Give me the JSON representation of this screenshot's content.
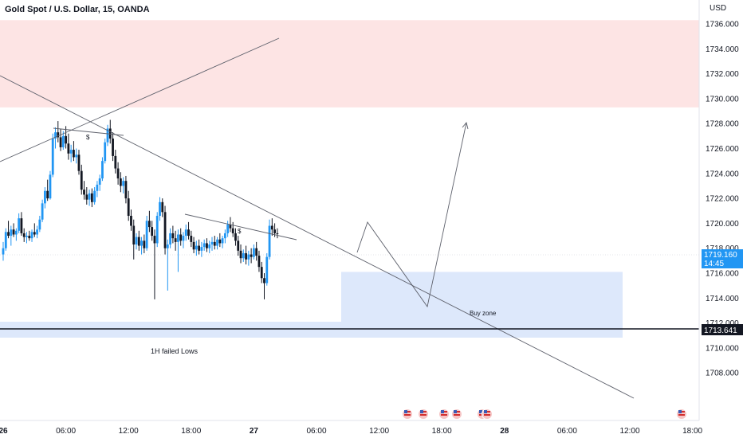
{
  "header": {
    "title": "Gold Spot / U.S. Dollar, 15, OANDA",
    "currency": "USD"
  },
  "chart_data": {
    "type": "candlestick",
    "symbol": "Gold Spot / U.S. Dollar",
    "interval": "15",
    "source": "OANDA",
    "y_axis": {
      "ticks": [
        "1736.000",
        "1734.000",
        "1732.000",
        "1730.000",
        "1728.000",
        "1726.000",
        "1724.000",
        "1722.000",
        "1720.000",
        "1718.000",
        "1716.000",
        "1714.000",
        "1712.000",
        "1710.000",
        "1708.000"
      ],
      "range": [
        1707.2,
        1737.4
      ]
    },
    "x_axis": {
      "ticks": [
        {
          "label": "26",
          "bold": true
        },
        {
          "label": "06:00",
          "bold": false
        },
        {
          "label": "12:00",
          "bold": false
        },
        {
          "label": "18:00",
          "bold": false
        },
        {
          "label": "27",
          "bold": true
        },
        {
          "label": "06:00",
          "bold": false
        },
        {
          "label": "12:00",
          "bold": false
        },
        {
          "label": "18:00",
          "bold": false
        },
        {
          "label": "28",
          "bold": true
        },
        {
          "label": "06:00",
          "bold": false
        },
        {
          "label": "12:00",
          "bold": false
        },
        {
          "label": "18:00",
          "bold": false
        }
      ],
      "tick_hours": [
        0,
        6,
        12,
        18,
        24,
        30,
        36,
        42,
        48,
        54,
        60,
        66
      ]
    },
    "price_labels": {
      "last_price": "1719.160",
      "countdown": "14:45",
      "support_line": "1713.641"
    },
    "annotations": {
      "failed_lows": "1H failed Lows",
      "buy_zone": "Buy zone",
      "liquidity_marker_1": "$",
      "liquidity_marker_2": "$"
    },
    "zones": [
      {
        "name": "supply",
        "from": 1729.3,
        "to": 1736.3,
        "color": "#fde4e4"
      },
      {
        "name": "buy",
        "from": 1713.2,
        "to": 1716.1,
        "color": "#dde8fb"
      }
    ],
    "colors": {
      "up": "#2196f3",
      "down": "#131722",
      "supply": "#fde4e4",
      "buy": "#dde8fb"
    },
    "candles": [
      [
        0.0,
        1717.5,
        1718.5,
        1717.0,
        1718.0
      ],
      [
        0.25,
        1718.0,
        1719.6,
        1717.8,
        1719.3
      ],
      [
        0.5,
        1719.3,
        1720.2,
        1718.8,
        1719.0
      ],
      [
        0.75,
        1719.0,
        1719.8,
        1718.2,
        1719.5
      ],
      [
        1.0,
        1719.5,
        1720.0,
        1718.9,
        1719.1
      ],
      [
        1.25,
        1719.1,
        1719.6,
        1718.6,
        1719.4
      ],
      [
        1.5,
        1719.4,
        1720.8,
        1719.2,
        1720.4
      ],
      [
        1.75,
        1720.4,
        1720.9,
        1719.0,
        1719.2
      ],
      [
        2.0,
        1719.2,
        1719.6,
        1718.5,
        1718.9
      ],
      [
        2.25,
        1718.9,
        1719.3,
        1718.4,
        1719.0
      ],
      [
        2.5,
        1719.0,
        1719.4,
        1718.6,
        1718.8
      ],
      [
        2.75,
        1718.8,
        1719.5,
        1718.5,
        1719.3
      ],
      [
        3.0,
        1719.3,
        1720.0,
        1718.9,
        1719.1
      ],
      [
        3.25,
        1719.1,
        1719.8,
        1718.8,
        1719.5
      ],
      [
        3.5,
        1719.5,
        1720.6,
        1719.3,
        1720.3
      ],
      [
        3.75,
        1720.3,
        1721.9,
        1720.1,
        1721.6
      ],
      [
        4.0,
        1721.6,
        1722.9,
        1721.2,
        1722.6
      ],
      [
        4.25,
        1722.6,
        1723.5,
        1721.8,
        1722.0
      ],
      [
        4.5,
        1722.0,
        1724.2,
        1721.9,
        1723.9
      ],
      [
        4.75,
        1723.9,
        1727.2,
        1723.7,
        1726.8
      ],
      [
        5.0,
        1726.8,
        1727.7,
        1726.0,
        1727.3
      ],
      [
        5.25,
        1727.3,
        1728.2,
        1726.5,
        1726.9
      ],
      [
        5.5,
        1726.9,
        1727.6,
        1725.8,
        1726.1
      ],
      [
        5.75,
        1726.1,
        1727.4,
        1725.9,
        1727.0
      ],
      [
        6.0,
        1727.0,
        1727.8,
        1726.0,
        1726.4
      ],
      [
        6.25,
        1726.4,
        1727.2,
        1725.1,
        1725.6
      ],
      [
        6.5,
        1725.6,
        1726.3,
        1724.9,
        1725.9
      ],
      [
        6.75,
        1725.9,
        1726.6,
        1725.0,
        1725.3
      ],
      [
        7.0,
        1725.3,
        1726.0,
        1724.8,
        1725.5
      ],
      [
        7.25,
        1725.5,
        1725.9,
        1723.9,
        1724.2
      ],
      [
        7.5,
        1724.2,
        1724.7,
        1722.3,
        1722.7
      ],
      [
        7.75,
        1722.7,
        1723.4,
        1721.9,
        1722.3
      ],
      [
        8.0,
        1722.3,
        1722.9,
        1721.5,
        1721.9
      ],
      [
        8.25,
        1721.9,
        1722.7,
        1721.4,
        1722.4
      ],
      [
        8.5,
        1722.4,
        1722.8,
        1721.3,
        1721.7
      ],
      [
        8.75,
        1721.7,
        1722.9,
        1721.5,
        1722.6
      ],
      [
        9.0,
        1722.6,
        1723.4,
        1722.1,
        1723.1
      ],
      [
        9.25,
        1723.1,
        1723.9,
        1722.6,
        1723.6
      ],
      [
        9.5,
        1723.6,
        1725.3,
        1723.4,
        1725.0
      ],
      [
        9.75,
        1725.0,
        1726.8,
        1724.8,
        1726.5
      ],
      [
        10.0,
        1726.5,
        1727.9,
        1726.2,
        1727.6
      ],
      [
        10.25,
        1727.6,
        1728.3,
        1726.4,
        1726.8
      ],
      [
        10.5,
        1726.8,
        1727.3,
        1725.0,
        1725.4
      ],
      [
        10.75,
        1725.4,
        1725.9,
        1724.0,
        1724.4
      ],
      [
        11.0,
        1724.4,
        1724.9,
        1723.1,
        1723.6
      ],
      [
        11.25,
        1723.6,
        1724.1,
        1722.5,
        1723.0
      ],
      [
        11.5,
        1723.0,
        1723.7,
        1722.4,
        1723.4
      ],
      [
        11.75,
        1723.4,
        1723.8,
        1721.6,
        1722.0
      ],
      [
        12.0,
        1722.0,
        1722.6,
        1720.2,
        1720.6
      ],
      [
        12.25,
        1720.6,
        1721.1,
        1719.4,
        1719.8
      ],
      [
        12.5,
        1719.8,
        1720.3,
        1717.1,
        1718.3
      ],
      [
        12.75,
        1718.3,
        1719.2,
        1717.9,
        1718.9
      ],
      [
        13.0,
        1718.9,
        1719.4,
        1717.8,
        1718.2
      ],
      [
        13.25,
        1718.2,
        1718.9,
        1717.5,
        1718.6
      ],
      [
        13.5,
        1718.6,
        1719.1,
        1717.6,
        1718.0
      ],
      [
        13.75,
        1718.0,
        1720.6,
        1717.8,
        1720.2
      ],
      [
        14.0,
        1720.2,
        1721.0,
        1719.3,
        1719.7
      ],
      [
        14.25,
        1719.7,
        1720.2,
        1718.6,
        1719.0
      ],
      [
        14.5,
        1719.0,
        1719.5,
        1713.9,
        1718.4
      ],
      [
        14.75,
        1718.4,
        1720.9,
        1718.1,
        1720.6
      ],
      [
        15.0,
        1720.6,
        1722.1,
        1720.2,
        1721.7
      ],
      [
        15.25,
        1721.7,
        1722.0,
        1720.5,
        1720.9
      ],
      [
        15.5,
        1720.9,
        1721.4,
        1717.5,
        1718.0
      ],
      [
        15.75,
        1718.0,
        1718.7,
        1714.6,
        1718.3
      ],
      [
        16.0,
        1718.3,
        1719.6,
        1718.0,
        1719.2
      ],
      [
        16.25,
        1719.2,
        1719.8,
        1718.4,
        1718.8
      ],
      [
        16.5,
        1718.8,
        1719.4,
        1717.8,
        1718.5
      ],
      [
        16.75,
        1718.5,
        1719.5,
        1716.1,
        1719.1
      ],
      [
        17.0,
        1719.1,
        1719.6,
        1718.2,
        1718.6
      ],
      [
        17.25,
        1718.6,
        1719.3,
        1718.0,
        1719.0
      ],
      [
        17.5,
        1719.0,
        1719.9,
        1718.6,
        1719.5
      ],
      [
        17.75,
        1719.5,
        1720.1,
        1718.7,
        1719.0
      ],
      [
        18.0,
        1719.0,
        1719.4,
        1718.1,
        1718.5
      ],
      [
        18.25,
        1718.5,
        1718.9,
        1717.6,
        1717.9
      ],
      [
        18.5,
        1717.9,
        1718.6,
        1717.4,
        1718.2
      ],
      [
        18.75,
        1718.2,
        1718.7,
        1717.5,
        1717.8
      ],
      [
        19.0,
        1717.8,
        1718.5,
        1717.3,
        1718.1
      ],
      [
        19.25,
        1718.1,
        1718.7,
        1717.8,
        1718.4
      ],
      [
        19.5,
        1718.4,
        1718.8,
        1717.7,
        1718.0
      ],
      [
        19.75,
        1718.0,
        1718.6,
        1717.6,
        1718.3
      ],
      [
        20.0,
        1718.3,
        1718.9,
        1717.8,
        1718.5
      ],
      [
        20.25,
        1718.5,
        1719.0,
        1717.9,
        1718.2
      ],
      [
        20.5,
        1718.2,
        1718.9,
        1717.9,
        1718.7
      ],
      [
        20.75,
        1718.7,
        1719.2,
        1718.1,
        1718.4
      ],
      [
        21.0,
        1718.4,
        1719.0,
        1718.0,
        1718.8
      ],
      [
        21.25,
        1718.8,
        1719.5,
        1718.4,
        1719.2
      ],
      [
        21.5,
        1719.2,
        1720.2,
        1718.9,
        1719.9
      ],
      [
        21.75,
        1719.9,
        1720.5,
        1719.3,
        1719.6
      ],
      [
        22.0,
        1719.6,
        1720.1,
        1718.9,
        1719.2
      ],
      [
        22.25,
        1719.2,
        1719.6,
        1718.2,
        1718.6
      ],
      [
        22.5,
        1718.6,
        1719.0,
        1717.4,
        1717.8
      ],
      [
        22.75,
        1717.8,
        1718.3,
        1716.8,
        1717.2
      ],
      [
        23.0,
        1717.2,
        1717.9,
        1716.9,
        1717.6
      ],
      [
        23.25,
        1717.6,
        1718.2,
        1716.7,
        1717.1
      ],
      [
        23.5,
        1717.1,
        1717.8,
        1716.6,
        1717.5
      ],
      [
        23.75,
        1717.5,
        1718.0,
        1716.8,
        1717.3
      ],
      [
        24.0,
        1717.3,
        1718.3,
        1717.1,
        1718.0
      ],
      [
        24.25,
        1718.0,
        1718.5,
        1717.0,
        1717.4
      ],
      [
        24.5,
        1717.4,
        1717.8,
        1716.1,
        1716.5
      ],
      [
        24.75,
        1716.5,
        1716.9,
        1715.2,
        1715.6
      ],
      [
        25.0,
        1715.6,
        1716.0,
        1713.9,
        1715.2
      ],
      [
        25.25,
        1715.2,
        1717.6,
        1715.0,
        1717.3
      ],
      [
        25.5,
        1717.3,
        1720.3,
        1717.1,
        1719.8
      ],
      [
        25.75,
        1719.8,
        1720.4,
        1719.0,
        1719.5
      ],
      [
        26.0,
        1719.5,
        1720.0,
        1718.9,
        1719.2
      ],
      [
        26.25,
        1719.2,
        1719.6,
        1718.8,
        1719.16
      ]
    ]
  }
}
